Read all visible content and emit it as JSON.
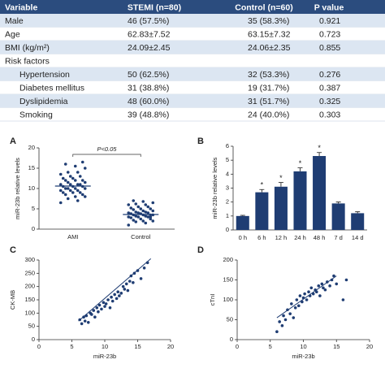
{
  "table": {
    "header": [
      "Variable",
      "STEMI (n=80)",
      "Control (n=60)",
      "P value"
    ],
    "rows": [
      [
        "Male",
        "46 (57.5%)",
        "35 (58.3%)",
        "0.921"
      ],
      [
        "Age",
        "62.83±7.52",
        "63.15±7.32",
        "0.723"
      ],
      [
        "BMI (kg/m²)",
        "24.09±2.45",
        "24.06±2.35",
        "0.855"
      ],
      [
        "Risk factors"
      ],
      [
        "Hypertension",
        "50 (62.5%)",
        "32 (53.3%)",
        "0.276"
      ],
      [
        "Diabetes mellitus",
        "31 (38.8%)",
        "19 (31.7%)",
        "0.387"
      ],
      [
        "Dyslipidemia",
        "48 (60.0%)",
        "31 (51.7%)",
        "0.325"
      ],
      [
        "Smoking",
        "39 (48.8%)",
        "24 (40.0%)",
        "0.303"
      ]
    ]
  },
  "chart_data": [
    {
      "type": "strip",
      "panel": "A",
      "y_label": "miR-23b relative levels",
      "color": "#1f3d73",
      "categories": [
        "AMI",
        "Control"
      ],
      "values": [
        [
          6.5,
          7,
          7.5,
          8,
          8,
          8.5,
          8.5,
          9,
          9,
          9,
          9.5,
          9.5,
          9.5,
          10,
          10,
          10,
          10,
          10.5,
          10.5,
          10.5,
          11,
          11,
          11,
          11,
          11.5,
          11.5,
          12,
          12,
          12,
          12.5,
          12.5,
          13,
          13,
          13.5,
          14,
          14,
          15,
          15.5,
          16,
          16.5
        ],
        [
          1,
          1.5,
          1.8,
          2,
          2,
          2.2,
          2.5,
          2.5,
          2.8,
          3,
          3,
          3,
          3.2,
          3.2,
          3.5,
          3.5,
          3.5,
          3.5,
          3.8,
          3.8,
          4,
          4,
          4,
          4.2,
          4.2,
          4.5,
          4.5,
          4.8,
          5,
          5,
          5.2,
          5.5,
          5.5,
          6,
          6,
          6.2,
          6.5,
          6.8,
          7,
          3
        ]
      ],
      "means": [
        10.6,
        3.6
      ],
      "annotation": "P<0.05",
      "ylim": [
        0,
        20
      ],
      "yticks": [
        0,
        5,
        10,
        15,
        20
      ]
    },
    {
      "type": "bar",
      "panel": "B",
      "y_label": "miR-23b relative levels",
      "color": "#1f3d73",
      "categories": [
        "0 h",
        "6 h",
        "12 h",
        "24 h",
        "48 h",
        "7 d",
        "14 d"
      ],
      "values": [
        1,
        2.7,
        3.1,
        4.2,
        5.3,
        1.9,
        1.2
      ],
      "errors": [
        0.05,
        0.2,
        0.3,
        0.25,
        0.25,
        0.1,
        0.1
      ],
      "significance": [
        null,
        "*",
        "*",
        "*",
        "*",
        null,
        null
      ],
      "ylim": [
        0,
        6
      ],
      "yticks": [
        0,
        1,
        2,
        3,
        4,
        5,
        6
      ]
    },
    {
      "type": "scatter",
      "panel": "C",
      "x_label": "miR-23b",
      "y_label": "CK-MB",
      "color": "#1f3d73",
      "x": [
        6.2,
        6.5,
        6.8,
        7,
        7.2,
        7.5,
        7.8,
        8,
        8.3,
        8.5,
        8.8,
        9,
        9.2,
        9.5,
        9.8,
        10,
        10.2,
        10.5,
        10.8,
        11,
        11.2,
        11.5,
        11.8,
        12,
        12.2,
        12.5,
        12.8,
        13,
        13.3,
        13.5,
        13.8,
        14,
        14.3,
        14.5,
        15,
        15.5,
        16,
        16.5
      ],
      "values": [
        75,
        60,
        85,
        70,
        90,
        65,
        100,
        95,
        110,
        85,
        120,
        105,
        130,
        115,
        140,
        125,
        135,
        150,
        120,
        160,
        145,
        170,
        155,
        180,
        165,
        175,
        200,
        190,
        210,
        185,
        220,
        240,
        215,
        250,
        260,
        230,
        270,
        290
      ],
      "fit": {
        "x": [
          6,
          17
        ],
        "y": [
          70,
          305
        ]
      },
      "xlim": [
        0,
        20
      ],
      "xticks": [
        0,
        5,
        10,
        15,
        20
      ],
      "ylim": [
        0,
        300
      ],
      "yticks": [
        0,
        50,
        100,
        150,
        200,
        250,
        300
      ]
    },
    {
      "type": "scatter",
      "panel": "D",
      "x_label": "miR-23b",
      "y_label": "cTnI",
      "color": "#1f3d73",
      "x": [
        6,
        6.4,
        6.8,
        7,
        7.3,
        7.6,
        8,
        8.2,
        8.5,
        8.8,
        9,
        9.3,
        9.5,
        9.8,
        10,
        10.2,
        10.5,
        10.8,
        11,
        11.2,
        11.5,
        11.8,
        12,
        12.3,
        12.5,
        12.8,
        13,
        13.3,
        13.6,
        14,
        14.3,
        14.6,
        15,
        16,
        16.5
      ],
      "values": [
        20,
        45,
        35,
        60,
        50,
        75,
        65,
        90,
        55,
        80,
        100,
        85,
        110,
        95,
        105,
        115,
        100,
        120,
        110,
        130,
        115,
        125,
        120,
        135,
        110,
        140,
        130,
        125,
        145,
        135,
        150,
        160,
        140,
        100,
        150
      ],
      "fit": {
        "x": [
          6,
          15
        ],
        "y": [
          55,
          160
        ]
      },
      "xlim": [
        0,
        20
      ],
      "xticks": [
        0,
        5,
        10,
        15,
        20
      ],
      "ylim": [
        0,
        200
      ],
      "yticks": [
        0,
        50,
        100,
        150,
        200
      ]
    }
  ]
}
